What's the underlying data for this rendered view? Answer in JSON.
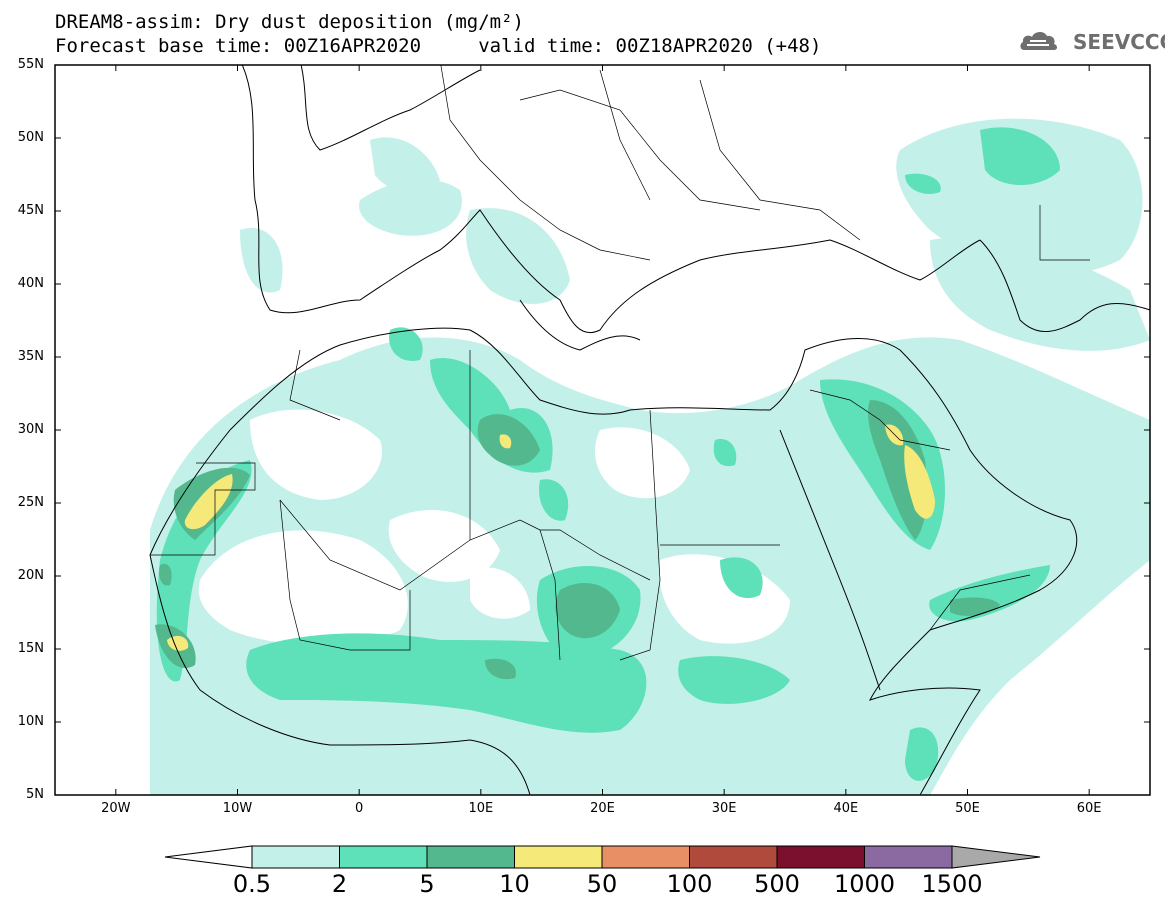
{
  "header": {
    "line1": "DREAM8-assim: Dry dust deposition (mg/m²)",
    "line2": "Forecast base time: 00Z16APR2020     valid time: 00Z18APR2020 (+48)"
  },
  "logo": {
    "text": "SEEVCCC",
    "icon": "cloud-icon",
    "color": "#6e6e6e"
  },
  "map": {
    "lat_ticks": [
      "55N",
      "50N",
      "45N",
      "40N",
      "35N",
      "30N",
      "25N",
      "20N",
      "15N",
      "10N",
      "5N"
    ],
    "lon_ticks": [
      "20W",
      "10W",
      "0",
      "10E",
      "20E",
      "30E",
      "40E",
      "50E",
      "60E"
    ],
    "lat_range": [
      5,
      55
    ],
    "lon_range": [
      -25,
      65
    ]
  },
  "colorbar": {
    "labels": [
      "0.5",
      "2",
      "5",
      "10",
      "50",
      "100",
      "500",
      "1000",
      "1500"
    ],
    "colors": [
      "#c4f0ea",
      "#5ee0b8",
      "#54b88e",
      "#f5e97a",
      "#e98f65",
      "#b04a3c",
      "#7a0f2e",
      "#8a6aa0"
    ],
    "end_left": "#ffffff",
    "end_right": "#a9a9a9"
  }
}
